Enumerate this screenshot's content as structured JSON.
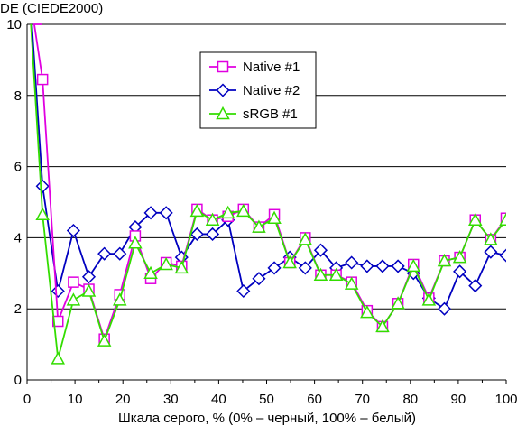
{
  "chart_data": {
    "type": "line",
    "title": "",
    "ylabel": "DE (CIEDE2000)",
    "xlabel": "Шкала серого, % (0% – черный, 100% – белый)",
    "xlim": [
      0,
      100
    ],
    "ylim": [
      0,
      10
    ],
    "x_ticks": [
      "0",
      "10",
      "20",
      "30",
      "40",
      "50",
      "60",
      "70",
      "80",
      "90",
      "100"
    ],
    "y_ticks": [
      "0",
      "2",
      "4",
      "6",
      "8",
      "10"
    ],
    "grid": "horizontal",
    "legend_position": "top-center",
    "x": [
      0,
      3.23,
      6.45,
      9.68,
      12.9,
      16.13,
      19.35,
      22.58,
      25.81,
      29.03,
      32.26,
      35.48,
      38.71,
      41.94,
      45.16,
      48.39,
      51.61,
      54.84,
      58.06,
      61.29,
      64.52,
      67.74,
      70.97,
      74.19,
      77.42,
      80.65,
      83.87,
      87.1,
      90.32,
      93.55,
      96.77,
      100
    ],
    "series": [
      {
        "name": "Native #1",
        "color": "#e000e0",
        "marker": "square",
        "values": [
          null,
          8.45,
          1.65,
          2.75,
          2.55,
          1.15,
          2.4,
          4.05,
          2.85,
          3.3,
          3.2,
          4.8,
          4.5,
          4.6,
          4.8,
          4.3,
          4.65,
          3.3,
          4.0,
          2.95,
          2.95,
          2.75,
          1.95,
          1.5,
          2.15,
          3.25,
          2.3,
          3.35,
          3.45,
          4.5,
          3.95,
          4.55
        ]
      },
      {
        "name": "Native #2",
        "color": "#0000c0",
        "marker": "diamond",
        "values": [
          null,
          5.45,
          2.5,
          4.2,
          2.9,
          3.55,
          3.55,
          4.3,
          4.7,
          4.7,
          3.45,
          4.1,
          4.1,
          4.5,
          2.5,
          2.85,
          3.15,
          3.45,
          3.15,
          3.65,
          3.15,
          3.3,
          3.2,
          3.2,
          3.2,
          3.0,
          2.3,
          2.0,
          3.05,
          2.65,
          3.6,
          3.5
        ]
      },
      {
        "name": "sRGB #1",
        "color": "#33dd00",
        "marker": "triangle",
        "values": [
          null,
          4.65,
          0.6,
          2.25,
          2.5,
          1.1,
          2.25,
          3.85,
          3.0,
          3.25,
          3.15,
          4.75,
          4.5,
          4.7,
          4.75,
          4.3,
          4.55,
          3.3,
          3.95,
          2.95,
          2.95,
          2.7,
          1.9,
          1.5,
          2.15,
          3.2,
          2.25,
          3.35,
          3.45,
          4.5,
          3.95,
          4.5
        ]
      }
    ],
    "lead_in": [
      {
        "series": "Native #1",
        "from": [
          1.5,
          10
        ],
        "to": [
          3.23,
          8.45
        ],
        "top": [
          3.0,
          10
        ]
      },
      {
        "series": "Native #2",
        "from": [
          1.0,
          10
        ],
        "to": [
          3.23,
          5.45
        ]
      },
      {
        "series": "sRGB #1",
        "from": [
          0.8,
          10
        ],
        "to": [
          3.23,
          4.65
        ]
      }
    ]
  }
}
